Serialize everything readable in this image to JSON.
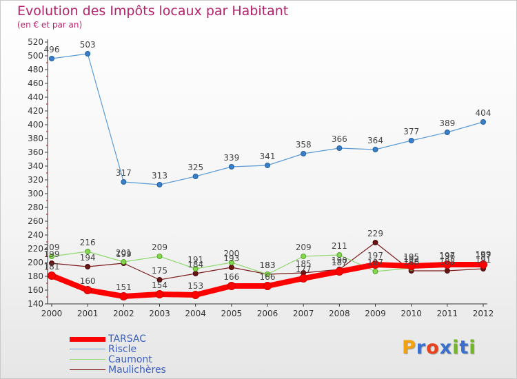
{
  "header": {
    "title": "Evolution des Impôts locaux par Habitant",
    "subtitle": "(en € et par an)"
  },
  "brand": {
    "text": "Proxiti",
    "colors": [
      "#f4a20c",
      "#3a6fd0",
      "#e8411c",
      "#3a6fd0",
      "#74b32a",
      "#3a6fd0",
      "#74b32a"
    ]
  },
  "chart_data": {
    "type": "line",
    "title": "Evolution des Impôts locaux par Habitant",
    "subtitle": "(en € et par an)",
    "x": [
      "2000",
      "2001",
      "2002",
      "2003",
      "2004",
      "2005",
      "2006",
      "2007",
      "2008",
      "2009",
      "2010",
      "2011",
      "2012"
    ],
    "ylim": [
      140,
      520
    ],
    "yticks": [
      140,
      160,
      180,
      200,
      220,
      240,
      260,
      280,
      300,
      320,
      340,
      360,
      380,
      400,
      420,
      440,
      460,
      480,
      500,
      520
    ],
    "grid": false,
    "legend": "bottom-left",
    "series": [
      {
        "name": "TARSAC",
        "color": "#ff0000",
        "values": [
          181,
          160,
          151,
          154,
          153,
          166,
          166,
          177,
          187,
          197,
          195,
          197,
          197
        ],
        "labels": [
          "181",
          "160",
          "151",
          "154",
          "153",
          "166",
          "166",
          "177",
          "187",
          "197",
          "195",
          "197",
          "197"
        ]
      },
      {
        "name": "Riscle",
        "color": "#5b9bd5",
        "values": [
          496,
          503,
          317,
          313,
          325,
          339,
          341,
          358,
          366,
          364,
          377,
          389,
          404
        ],
        "labels": [
          "496",
          "503",
          "317",
          "313",
          "325",
          "339",
          "341",
          "358",
          "366",
          "364",
          "377",
          "389",
          "404"
        ]
      },
      {
        "name": "Caumont",
        "color": "#90d870",
        "values": [
          209,
          216,
          201,
          209,
          191,
          200,
          183,
          209,
          211,
          187,
          192,
          196,
          199
        ],
        "labels": [
          "209",
          "216",
          "201",
          "209",
          "191",
          "200",
          "183",
          "209",
          "211",
          "187",
          "192",
          "196",
          "199"
        ]
      },
      {
        "name": "Maulichères",
        "color": "#7b1a1a",
        "values": [
          199,
          194,
          199,
          175,
          184,
          193,
          183,
          185,
          190,
          229,
          188,
          188,
          191
        ],
        "labels": [
          "199",
          "194",
          "199",
          "175",
          "184",
          "193",
          "183",
          "185",
          "190",
          "229",
          "188",
          "188",
          "191"
        ]
      }
    ]
  }
}
